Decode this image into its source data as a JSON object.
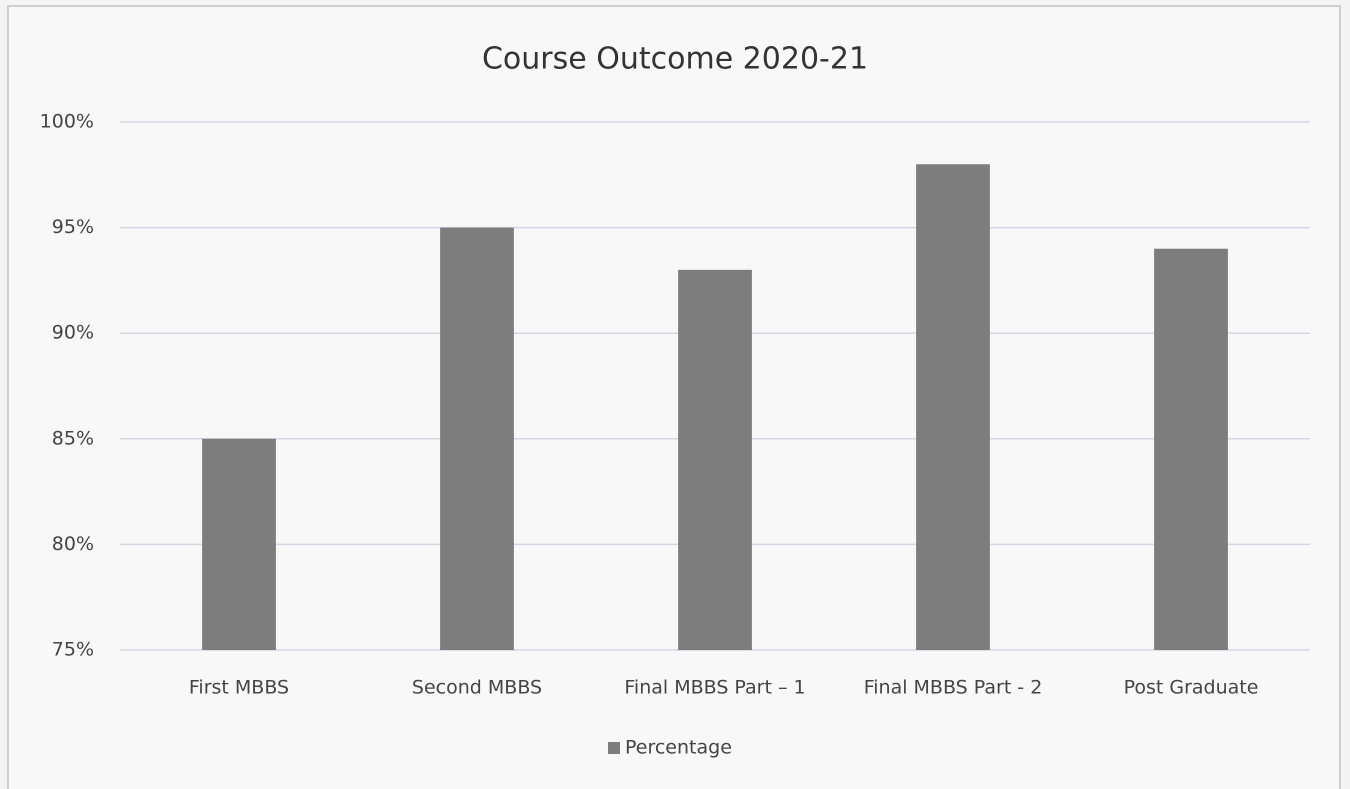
{
  "chart_data": {
    "type": "bar",
    "title": "Course Outcome 2020-21",
    "categories": [
      "First MBBS",
      "Second MBBS",
      "Final MBBS Part – 1",
      "Final MBBS Part - 2",
      "Post Graduate"
    ],
    "series": [
      {
        "name": "Percentage",
        "color": "#7d7d7d",
        "values": [
          85,
          95,
          93,
          98,
          94
        ]
      }
    ],
    "ylim": [
      75,
      100
    ],
    "yticks": [
      {
        "value": 75,
        "label": "75%"
      },
      {
        "value": 80,
        "label": "80%"
      },
      {
        "value": 85,
        "label": "85%"
      },
      {
        "value": 90,
        "label": "90%"
      },
      {
        "value": 95,
        "label": "95%"
      },
      {
        "value": 100,
        "label": "100%"
      }
    ],
    "grid": true,
    "legend": "bottom"
  }
}
